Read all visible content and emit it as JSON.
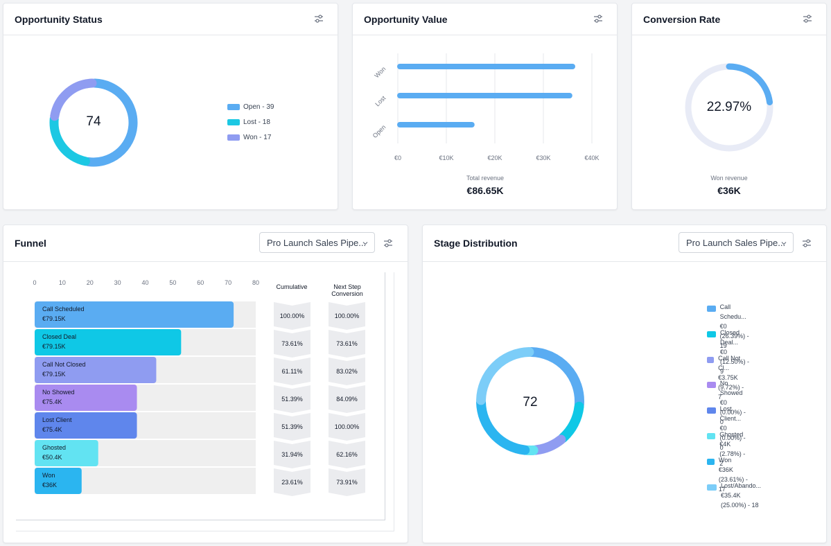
{
  "opportunity_status": {
    "title": "Opportunity Status",
    "total": "74",
    "legend": [
      {
        "label": "Open - 39",
        "value": 39,
        "color": "#5aacf2"
      },
      {
        "label": "Lost - 18",
        "value": 18,
        "color": "#1cc8e3"
      },
      {
        "label": "Won - 17",
        "value": 17,
        "color": "#8f9cf1"
      }
    ]
  },
  "opportunity_value": {
    "title": "Opportunity Value",
    "total_label": "Total revenue",
    "total_value": "€86.65K",
    "chart_data": {
      "type": "bar",
      "orientation": "horizontal",
      "categories": [
        "Won",
        "Lost",
        "Open"
      ],
      "values": [
        36000,
        35400,
        15250
      ],
      "xlim": [
        0,
        40000
      ],
      "x_ticks": [
        "€0",
        "€10K",
        "€20K",
        "€30K",
        "€40K"
      ],
      "color": "#5aacf2"
    }
  },
  "conversion_rate": {
    "title": "Conversion Rate",
    "value_text": "22.97%",
    "value": 22.97,
    "label": "Won revenue",
    "amount": "€36K",
    "color": "#5aacf2",
    "track_color": "#e8ebf6"
  },
  "funnel": {
    "title": "Funnel",
    "pipeline_select": "Pro Launch Sales Pipe...",
    "col_cumulative": "Cumulative",
    "col_next_step": "Next Step Conversion",
    "chart_data": {
      "type": "bar",
      "orientation": "horizontal",
      "x_ticks": [
        "0",
        "10",
        "20",
        "30",
        "40",
        "50",
        "60",
        "70",
        "80"
      ],
      "xlim": [
        0,
        80
      ],
      "stages": [
        {
          "name": "Call Scheduled",
          "amount": "€79.15K",
          "value": 72,
          "color": "#5aacf2",
          "cumulative": "100.00%",
          "next": "100.00%"
        },
        {
          "name": "Closed Deal",
          "amount": "€79.15K",
          "value": 53,
          "color": "#0fc8e6",
          "cumulative": "73.61%",
          "next": "73.61%"
        },
        {
          "name": "Call Not Closed",
          "amount": "€79.15K",
          "value": 44,
          "color": "#8f9cf1",
          "cumulative": "61.11%",
          "next": "83.02%"
        },
        {
          "name": "No Showed",
          "amount": "€75.4K",
          "value": 37,
          "color": "#a98bf0",
          "cumulative": "51.39%",
          "next": "84.09%"
        },
        {
          "name": "Lost Client",
          "amount": "€75.4K",
          "value": 37,
          "color": "#5f86ec",
          "cumulative": "51.39%",
          "next": "100.00%"
        },
        {
          "name": "Ghosted",
          "amount": "€50.4K",
          "value": 23,
          "color": "#62e3f2",
          "cumulative": "31.94%",
          "next": "62.16%"
        },
        {
          "name": "Won",
          "amount": "€36K",
          "value": 17,
          "color": "#2bb5f0",
          "cumulative": "23.61%",
          "next": "73.91%"
        }
      ]
    }
  },
  "stage_distribution": {
    "title": "Stage Distribution",
    "pipeline_select": "Pro Launch Sales Pipe...",
    "total": "72",
    "legend": [
      {
        "name": "Call Schedu...",
        "detail": "€0 (26.39%) - 19",
        "value": 19,
        "color": "#5aacf2"
      },
      {
        "name": "Closed Deal...",
        "detail": "€0 (12.50%) - 9",
        "value": 9,
        "color": "#0fc8e6"
      },
      {
        "name": "Call Not Cl...",
        "detail": "€3.75K (9.72%) - 7",
        "value": 7,
        "color": "#8f9cf1"
      },
      {
        "name": "No Showed",
        "detail": "€0 (0.00%) - 0",
        "value": 0,
        "color": "#a98bf0"
      },
      {
        "name": "Lost Client...",
        "detail": "€0 (0.00%) - 0",
        "value": 0,
        "color": "#5f86ec"
      },
      {
        "name": "Ghosted",
        "detail": "€4K (2.78%) - 2",
        "value": 2,
        "color": "#62e3f2"
      },
      {
        "name": "Won",
        "detail": "€36K (23.61%) - 17",
        "value": 17,
        "color": "#2bb5f0"
      },
      {
        "name": "Lost/Abando...",
        "detail": "€35.4K (25.00%) - 18",
        "value": 18,
        "color": "#7ccdf8"
      }
    ]
  },
  "icons": {
    "settings": "sliders-icon",
    "caret": "chevron-down-icon"
  }
}
